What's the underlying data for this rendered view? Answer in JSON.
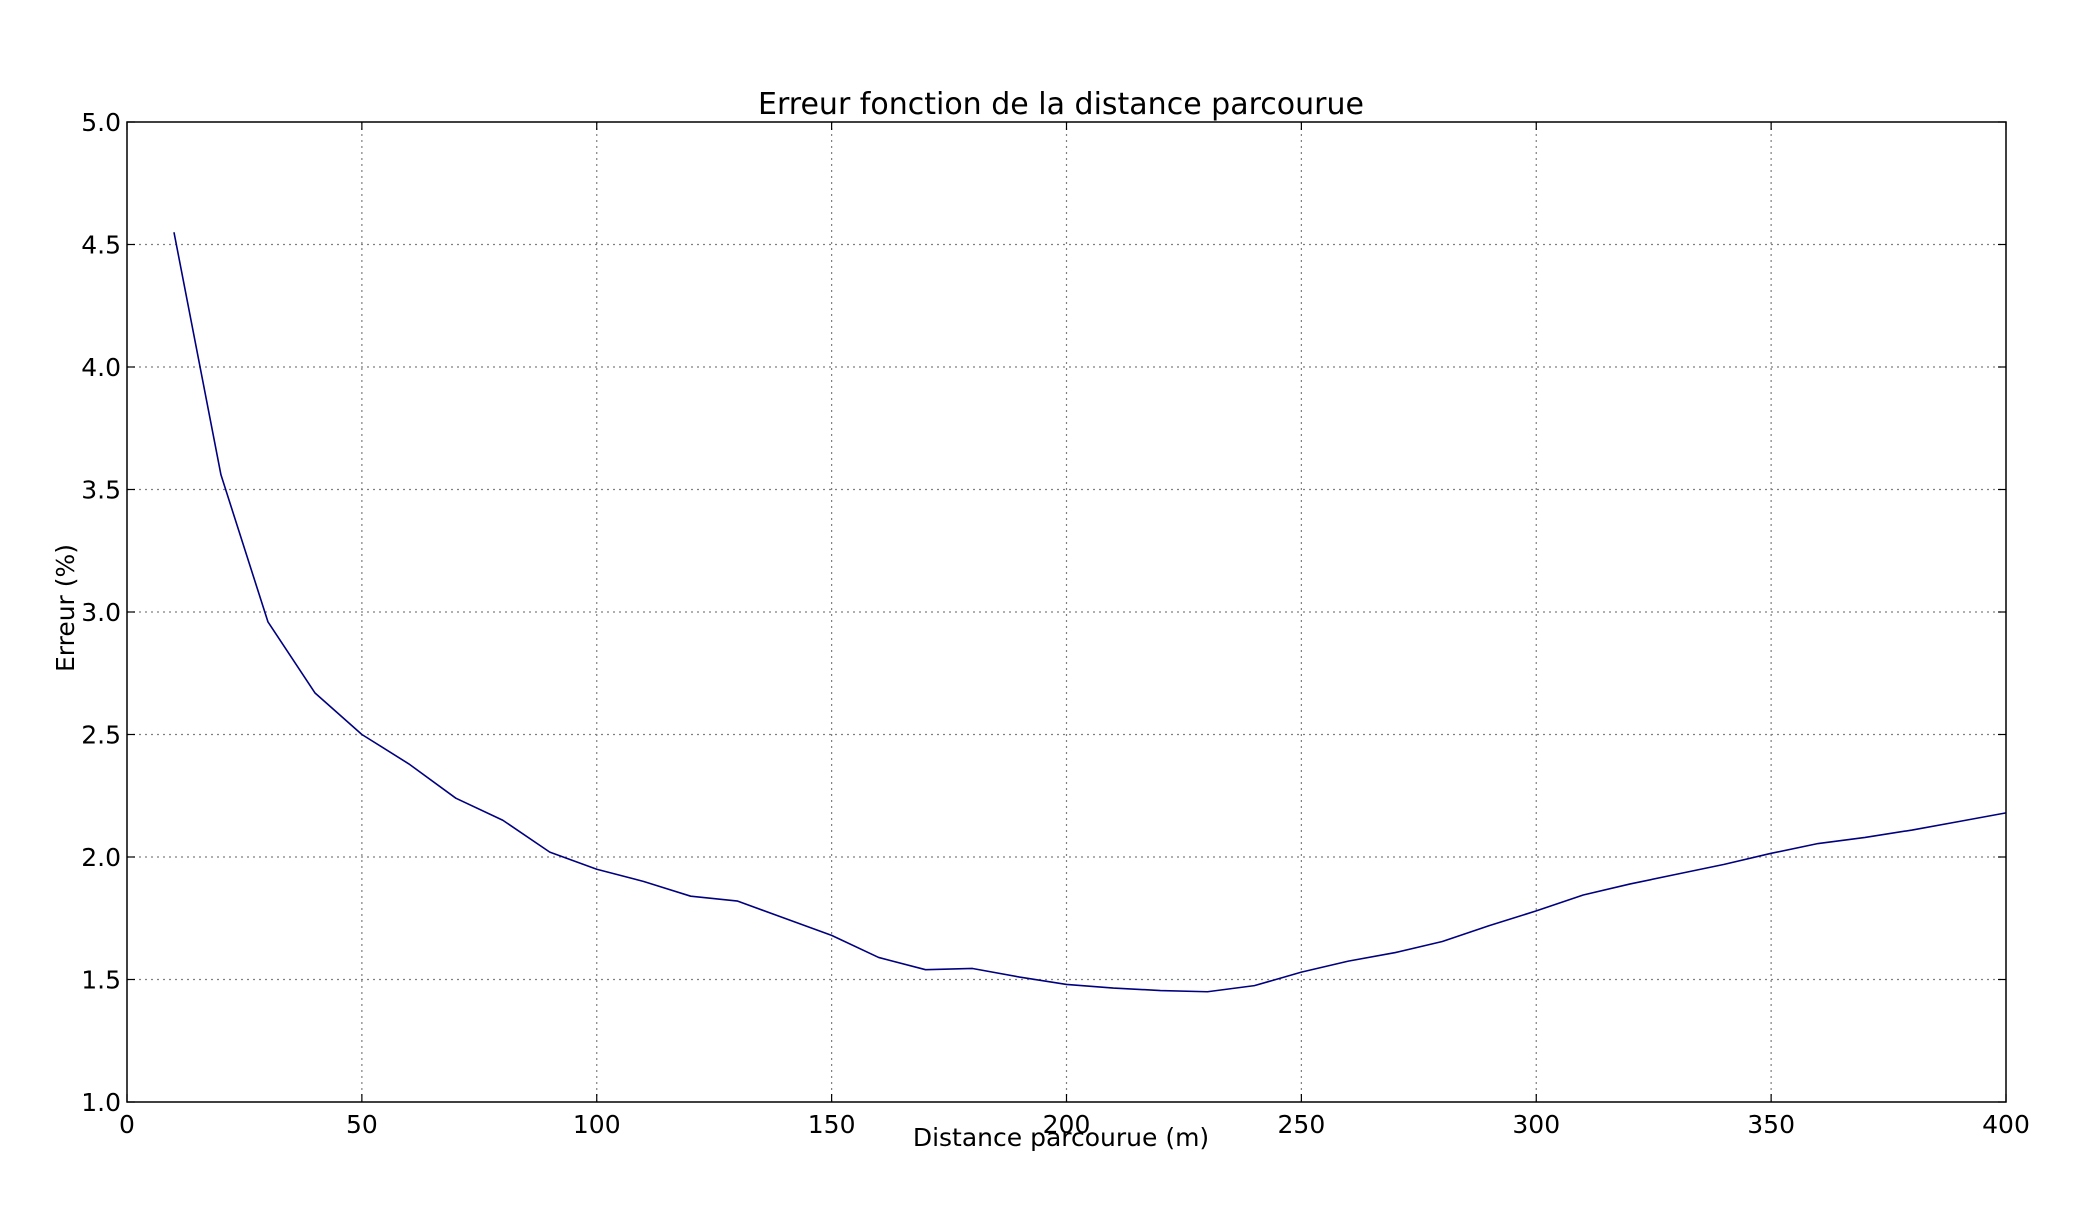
{
  "chart_data": {
    "type": "line",
    "title": "Erreur fonction de la distance parcourue",
    "xlabel": "Distance parcourue (m)",
    "ylabel": "Erreur (%)",
    "xlim": [
      0,
      400
    ],
    "ylim": [
      1.0,
      5.0
    ],
    "xticks": [
      {
        "value": 0,
        "label": "0"
      },
      {
        "value": 50,
        "label": "50"
      },
      {
        "value": 100,
        "label": "100"
      },
      {
        "value": 150,
        "label": "150"
      },
      {
        "value": 200,
        "label": "200"
      },
      {
        "value": 250,
        "label": "250"
      },
      {
        "value": 300,
        "label": "300"
      },
      {
        "value": 350,
        "label": "350"
      },
      {
        "value": 400,
        "label": "400"
      }
    ],
    "yticks": [
      {
        "value": 1.0,
        "label": "1.0"
      },
      {
        "value": 1.5,
        "label": "1.5"
      },
      {
        "value": 2.0,
        "label": "2.0"
      },
      {
        "value": 2.5,
        "label": "2.5"
      },
      {
        "value": 3.0,
        "label": "3.0"
      },
      {
        "value": 3.5,
        "label": "3.5"
      },
      {
        "value": 4.0,
        "label": "4.0"
      },
      {
        "value": 4.5,
        "label": "4.5"
      },
      {
        "value": 5.0,
        "label": "5.0"
      }
    ],
    "grid": true,
    "colors": {
      "line": "#000080",
      "grid": "#7f7f7f",
      "axes": "#000000"
    },
    "series": [
      {
        "x": [
          10,
          20,
          30,
          40,
          50,
          60,
          70,
          80,
          90,
          100,
          110,
          120,
          130,
          140,
          150,
          160,
          170,
          180,
          190,
          200,
          210,
          220,
          230,
          240,
          250,
          260,
          270,
          280,
          290,
          300,
          310,
          320,
          330,
          340,
          350,
          360,
          370,
          380,
          390,
          400
        ],
        "y": [
          4.55,
          3.56,
          2.96,
          2.67,
          2.5,
          2.38,
          2.24,
          2.15,
          2.02,
          1.95,
          1.9,
          1.84,
          1.82,
          1.75,
          1.68,
          1.59,
          1.54,
          1.545,
          1.51,
          1.48,
          1.465,
          1.455,
          1.45,
          1.475,
          1.53,
          1.575,
          1.61,
          1.655,
          1.72,
          1.78,
          1.845,
          1.89,
          1.93,
          1.97,
          2.015,
          2.055,
          2.08,
          2.11,
          2.145,
          2.18
        ]
      }
    ]
  }
}
